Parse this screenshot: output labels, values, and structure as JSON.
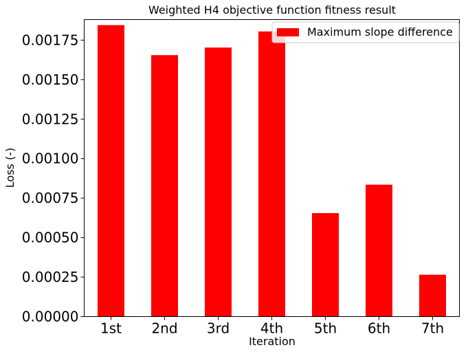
{
  "chart_data": {
    "type": "bar",
    "title": "Weighted H4 objective function fitness result",
    "xlabel": "Iteration",
    "ylabel": "Loss (-)",
    "categories": [
      "1st",
      "2nd",
      "3rd",
      "4th",
      "5th",
      "6th",
      "7th"
    ],
    "series": [
      {
        "name": "Maximum slope difference",
        "color": "#ff0000",
        "values": [
          0.001845,
          0.001655,
          0.001703,
          0.001805,
          0.000655,
          0.000835,
          0.000265
        ]
      }
    ],
    "ylim": [
      0,
      0.00188
    ],
    "yticks": [
      0,
      0.00025,
      0.0005,
      0.00075,
      0.001,
      0.00125,
      0.0015,
      0.00175
    ],
    "ytick_labels": [
      "0.00000",
      "0.00025",
      "0.00050",
      "0.00075",
      "0.00100",
      "0.00125",
      "0.00150",
      "0.00175"
    ],
    "grid": false,
    "legend_position": "top-right"
  }
}
